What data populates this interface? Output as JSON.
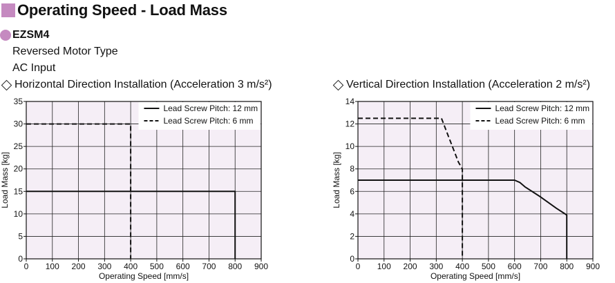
{
  "page": {
    "title": "Operating Speed - Load Mass",
    "model": "EZSM4",
    "subtitle_lines": [
      "Reversed Motor Type",
      "AC Input"
    ],
    "accent_color": "#c58ac0",
    "plot_background": "#f5eef6"
  },
  "chart_data": [
    {
      "type": "line",
      "heading": "Horizontal Direction Installation (Acceleration 3 m/s²)",
      "xlabel": "Operating Speed [mm/s]",
      "ylabel": "Load Mass [kg]",
      "xlim": [
        0,
        900
      ],
      "ylim": [
        0,
        35
      ],
      "xticks": [
        0,
        100,
        200,
        300,
        400,
        500,
        600,
        700,
        800,
        900
      ],
      "yticks": [
        0,
        5,
        10,
        15,
        20,
        25,
        30,
        35
      ],
      "grid": true,
      "legend_position": "top-right",
      "series": [
        {
          "name": "Lead Screw Pitch: 12 mm",
          "style": "solid",
          "points": [
            [
              0,
              15
            ],
            [
              800,
              15
            ],
            [
              800,
              0
            ]
          ]
        },
        {
          "name": "Lead Screw Pitch: 6 mm",
          "style": "dashed",
          "points": [
            [
              0,
              30
            ],
            [
              400,
              30
            ],
            [
              400,
              0
            ]
          ]
        }
      ]
    },
    {
      "type": "line",
      "heading": "Vertical Direction Installation (Acceleration 2 m/s²)",
      "xlabel": "Operating Speed [mm/s]",
      "ylabel": "Load Mass [kg]",
      "xlim": [
        0,
        900
      ],
      "ylim": [
        0,
        14
      ],
      "xticks": [
        0,
        100,
        200,
        300,
        400,
        500,
        600,
        700,
        800,
        900
      ],
      "yticks": [
        0,
        2,
        4,
        6,
        8,
        10,
        12,
        14
      ],
      "grid": true,
      "legend_position": "top-right",
      "series": [
        {
          "name": "Lead Screw Pitch: 12 mm",
          "style": "solid",
          "points": [
            [
              0,
              7
            ],
            [
              600,
              7
            ],
            [
              620,
              6.8
            ],
            [
              640,
              6.4
            ],
            [
              700,
              5.5
            ],
            [
              760,
              4.5
            ],
            [
              800,
              3.9
            ],
            [
              800,
              0
            ]
          ]
        },
        {
          "name": "Lead Screw Pitch: 6 mm",
          "style": "dashed",
          "points": [
            [
              0,
              12.5
            ],
            [
              320,
              12.5
            ],
            [
              345,
              11
            ],
            [
              370,
              9.5
            ],
            [
              385,
              8.6
            ],
            [
              400,
              8
            ],
            [
              400,
              0
            ]
          ]
        }
      ]
    }
  ]
}
